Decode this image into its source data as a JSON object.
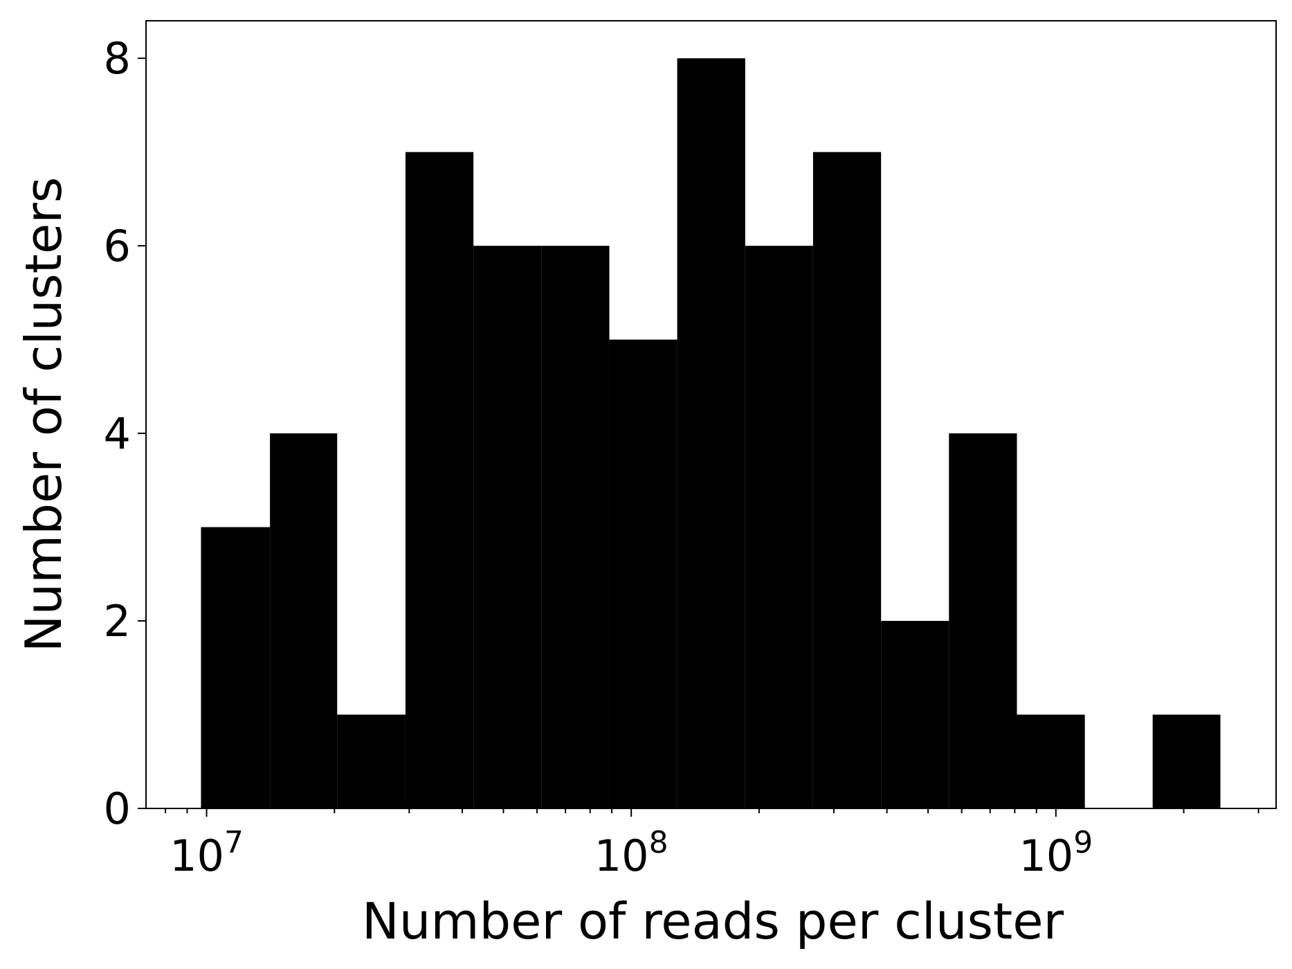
{
  "chart_data": {
    "type": "bar",
    "title": "",
    "xlabel": "Number of reads per cluster",
    "ylabel": "Number of clusters",
    "xscale": "log",
    "xlim": [
      7200000,
      3300000000
    ],
    "ylim": [
      0,
      8.4
    ],
    "bin_edges": [
      9700000,
      14100000,
      20300000,
      29400000,
      42500000,
      61400000,
      88800000,
      128300000,
      185500000,
      268000000,
      387500000,
      560000000,
      809500000,
      1170000000,
      1690000000,
      2440000000
    ],
    "values": [
      3,
      4,
      1,
      7,
      6,
      6,
      5,
      8,
      6,
      7,
      2,
      4,
      1,
      0,
      1
    ],
    "x_ticks": [
      {
        "value": 10000000,
        "base": "10",
        "exp": "7"
      },
      {
        "value": 100000000,
        "base": "10",
        "exp": "8"
      },
      {
        "value": 1000000000,
        "base": "10",
        "exp": "9"
      }
    ],
    "y_ticks": [
      0,
      2,
      4,
      6,
      8
    ],
    "bar_color": "#000000",
    "grid": false,
    "legend": "none"
  }
}
